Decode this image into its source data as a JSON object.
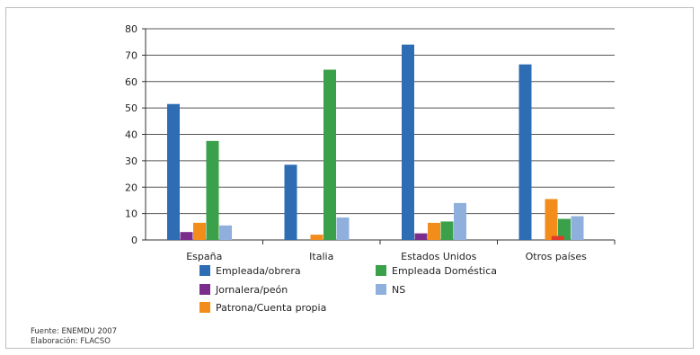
{
  "chart_data": {
    "type": "bar",
    "categories": [
      "España",
      "Italia",
      "Estados Unidos",
      "Otros países"
    ],
    "series": [
      {
        "name": "Empleada/obrera",
        "color": "#2e6db4",
        "values": [
          51.5,
          28.5,
          74,
          66.5
        ]
      },
      {
        "name": "Jornalera/peón",
        "color": "#7b2d8b",
        "values": [
          3,
          0,
          2.5,
          0
        ]
      },
      {
        "name": "Patrona/Cuenta propia",
        "color": "#f28c1a",
        "values": [
          6.5,
          2,
          6.5,
          15.5
        ]
      },
      {
        "name": "Empleada Doméstica",
        "color": "#3aa14a",
        "values": [
          37.5,
          64.5,
          7,
          8
        ]
      },
      {
        "name": "NS",
        "color": "#8fb0dc",
        "values": [
          5.5,
          8.5,
          14,
          9
        ]
      }
    ],
    "extra_marks": [
      {
        "category": "Otros países",
        "color": "#e23a2a",
        "value": 1.5
      }
    ],
    "yticks": [
      0,
      10,
      20,
      30,
      40,
      50,
      60,
      70,
      80
    ],
    "ylim": [
      0,
      80
    ],
    "grid": true,
    "legend_position": "bottom",
    "legend_order": [
      0,
      3,
      1,
      4,
      2
    ]
  },
  "source": {
    "line1": "Fuente: ENEMDU 2007",
    "line2": "Elaboración: FLACSO"
  }
}
